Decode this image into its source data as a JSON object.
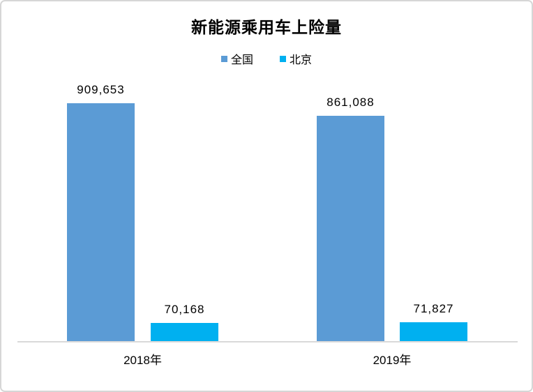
{
  "title": "新能源乘用车上险量",
  "legend": {
    "items": [
      {
        "label": "全国",
        "color": "#5B9BD5"
      },
      {
        "label": "北京",
        "color": "#00B0F0"
      }
    ]
  },
  "chart_data": {
    "type": "bar",
    "title": "新能源乘用车上险量",
    "categories": [
      "2018年",
      "2019年"
    ],
    "series": [
      {
        "name": "全国",
        "color": "#5B9BD5",
        "values": [
          909653,
          861088
        ],
        "labels": [
          "909,653",
          "861,088"
        ]
      },
      {
        "name": "北京",
        "color": "#00B0F0",
        "values": [
          70168,
          71827
        ],
        "labels": [
          "70,168",
          "71,827"
        ]
      }
    ],
    "xlabel": "",
    "ylabel": "",
    "ylim": [
      0,
      1000000
    ],
    "grid": false,
    "legend_position": "top",
    "data_labels": true,
    "axis_line_color": "#D9D9D9"
  },
  "colors": {
    "background": "#FFFFFF",
    "border": "#D6D6D6",
    "text": "#000000"
  }
}
